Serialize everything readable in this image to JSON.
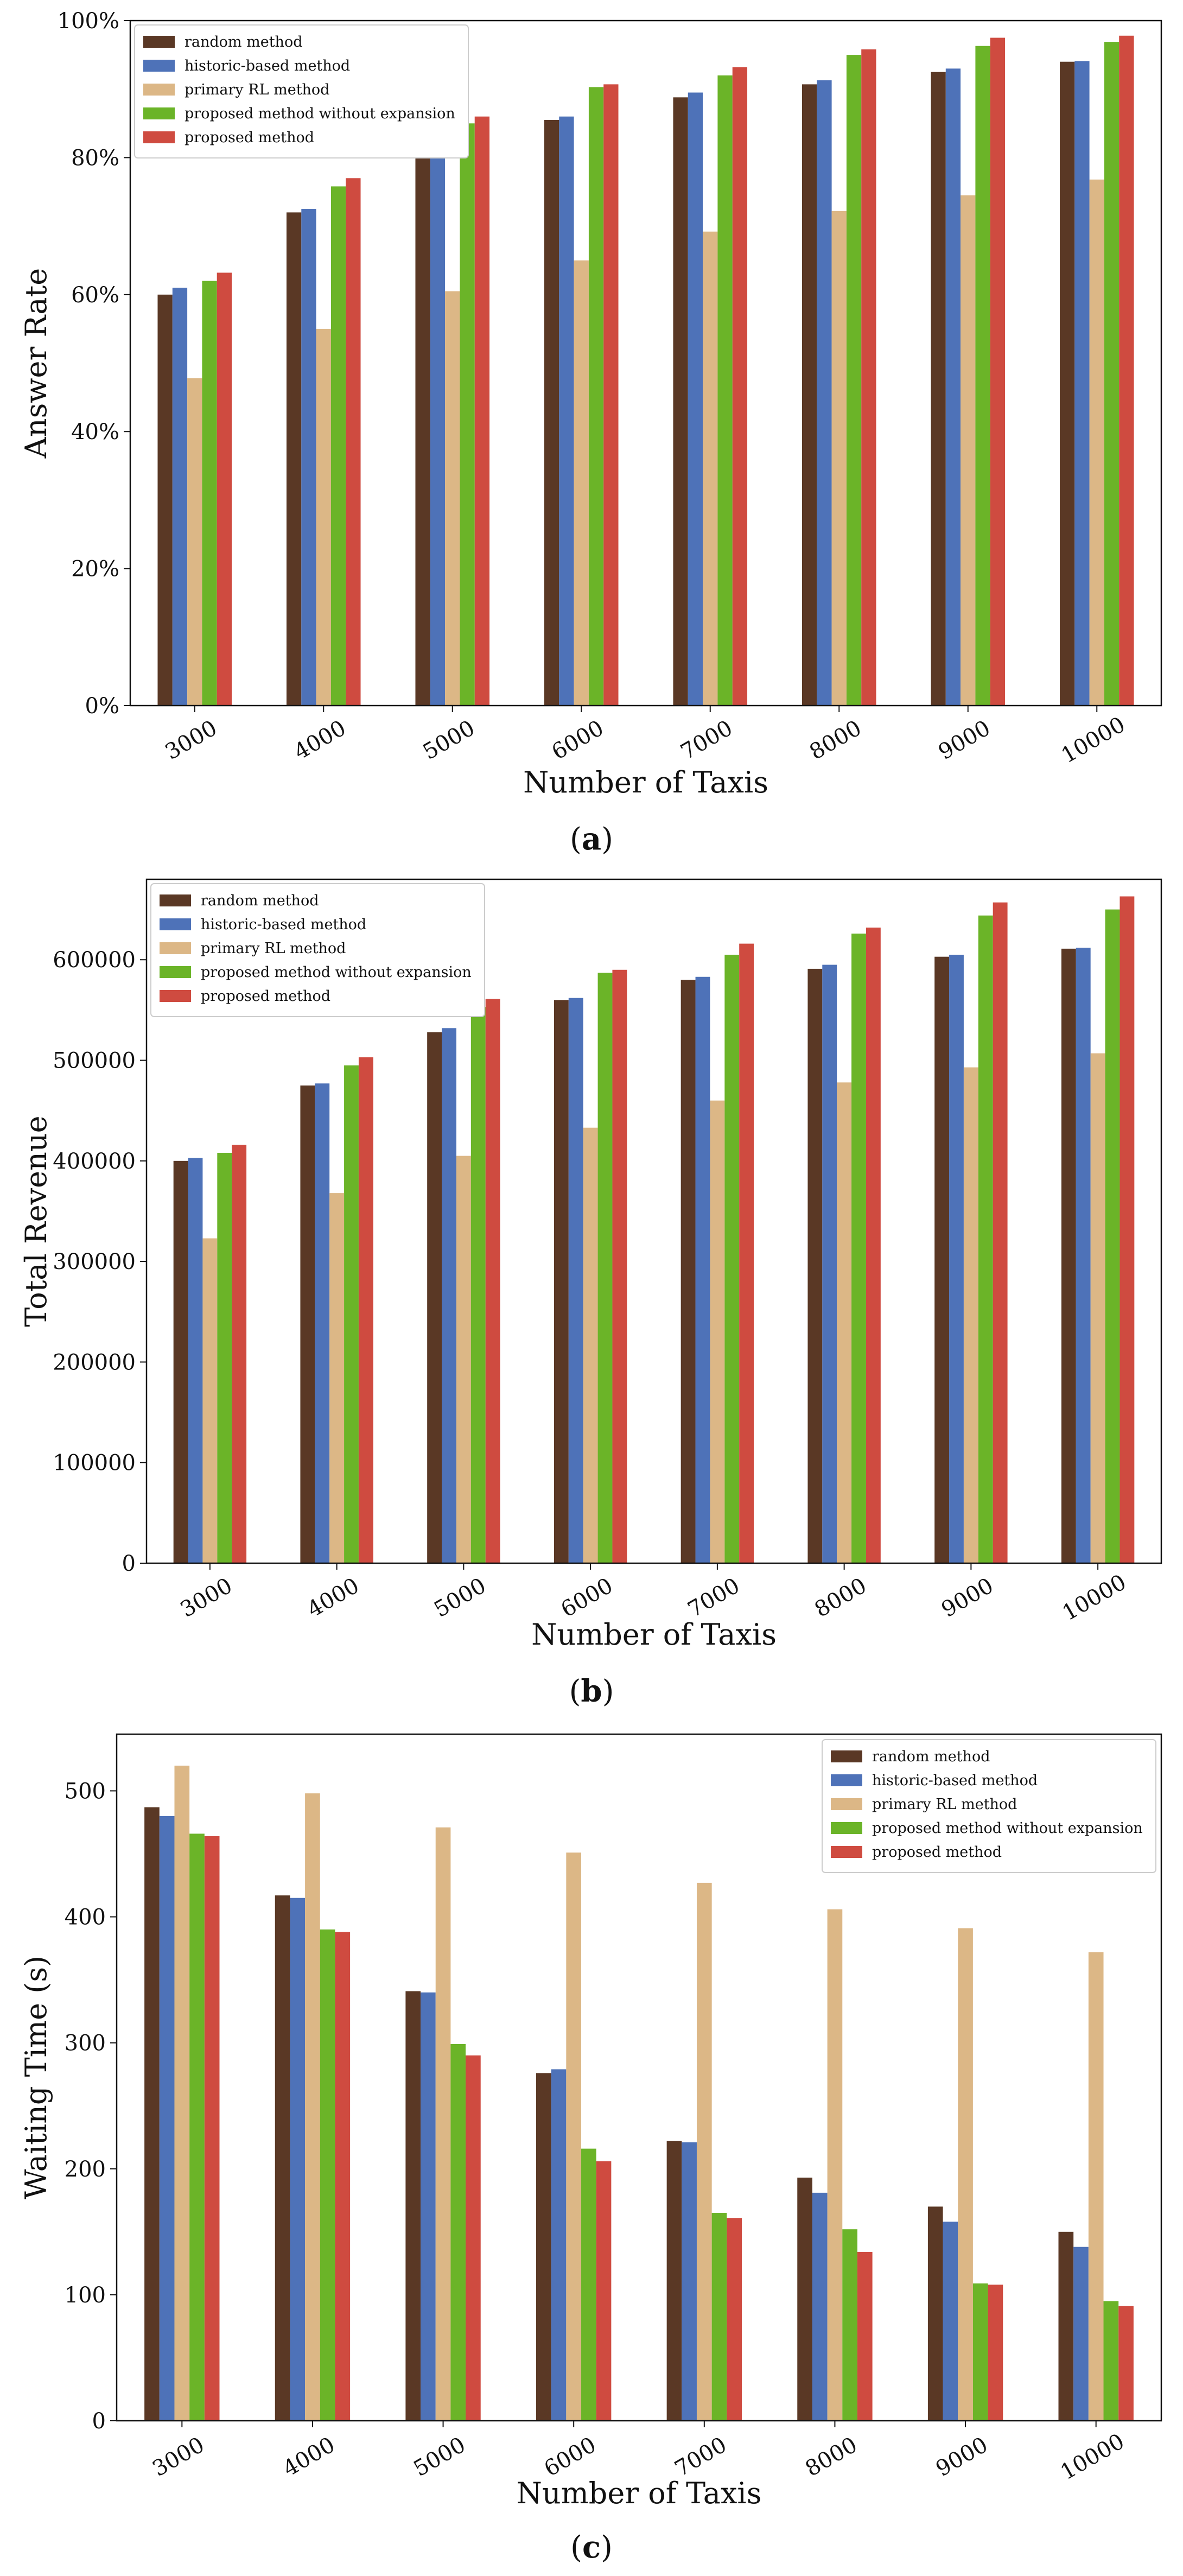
{
  "colors": {
    "random": "#5a3825",
    "historic": "#4e72b8",
    "primary_rl": "#dcb786",
    "proposed_no_exp": "#6bb428",
    "proposed": "#cf4b40"
  },
  "chart_data": [
    {
      "type": "bar",
      "id": "a",
      "caption_open": "(",
      "caption_letter": "a",
      "caption_close": ")",
      "xlabel": "Number of Taxis",
      "ylabel": "Answer Rate",
      "categories": [
        "3000",
        "4000",
        "5000",
        "6000",
        "7000",
        "8000",
        "9000",
        "10000"
      ],
      "ylim": [
        0,
        100
      ],
      "yticks": [
        0,
        20,
        40,
        60,
        80,
        100
      ],
      "ytick_labels": [
        "0%",
        "20%",
        "40%",
        "60%",
        "80%",
        "100%"
      ],
      "legend_position": "top-left",
      "series": [
        {
          "name": "random method",
          "color_key": "random",
          "values": [
            60,
            72,
            80.5,
            85.5,
            88.8,
            90.7,
            92.5,
            94
          ]
        },
        {
          "name": "historic-based method",
          "color_key": "historic",
          "values": [
            61,
            72.5,
            81.2,
            86,
            89.5,
            91.3,
            93,
            94.1
          ]
        },
        {
          "name": "primary RL method",
          "color_key": "primary_rl",
          "values": [
            47.8,
            55,
            60.5,
            65,
            69.2,
            72.2,
            74.5,
            76.8
          ]
        },
        {
          "name": "proposed method without expansion",
          "color_key": "proposed_no_exp",
          "values": [
            62,
            75.8,
            85,
            90.3,
            92,
            95,
            96.3,
            96.9
          ]
        },
        {
          "name": "proposed method",
          "color_key": "proposed",
          "values": [
            63.2,
            77,
            86,
            90.7,
            93.2,
            95.8,
            97.5,
            97.8
          ]
        }
      ]
    },
    {
      "type": "bar",
      "id": "b",
      "caption_open": "(",
      "caption_letter": "b",
      "caption_close": ")",
      "xlabel": "Number of Taxis",
      "ylabel": "Total Revenue",
      "categories": [
        "3000",
        "4000",
        "5000",
        "6000",
        "7000",
        "8000",
        "9000",
        "10000"
      ],
      "ylim": [
        0,
        680000
      ],
      "yticks": [
        0,
        100000,
        200000,
        300000,
        400000,
        500000,
        600000
      ],
      "ytick_labels": [
        "0",
        "100000",
        "200000",
        "300000",
        "400000",
        "500000",
        "600000"
      ],
      "legend_position": "top-left",
      "series": [
        {
          "name": "random method",
          "color_key": "random",
          "values": [
            400000,
            475000,
            528000,
            560000,
            580000,
            591000,
            603000,
            611000
          ]
        },
        {
          "name": "historic-based method",
          "color_key": "historic",
          "values": [
            403000,
            477000,
            532000,
            562000,
            583000,
            595000,
            605000,
            612000
          ]
        },
        {
          "name": "primary RL method",
          "color_key": "primary_rl",
          "values": [
            323000,
            368000,
            405000,
            433000,
            460000,
            478000,
            493000,
            507000
          ]
        },
        {
          "name": "proposed method without expansion",
          "color_key": "proposed_no_exp",
          "values": [
            408000,
            495000,
            553000,
            587000,
            605000,
            626000,
            644000,
            650000
          ]
        },
        {
          "name": "proposed method",
          "color_key": "proposed",
          "values": [
            416000,
            503000,
            561000,
            590000,
            616000,
            632000,
            657000,
            663000
          ]
        }
      ]
    },
    {
      "type": "bar",
      "id": "c",
      "caption_open": "(",
      "caption_letter": "c",
      "caption_close": ")",
      "xlabel": "Number of Taxis",
      "ylabel": "Waiting Time (s)",
      "categories": [
        "3000",
        "4000",
        "5000",
        "6000",
        "7000",
        "8000",
        "9000",
        "10000"
      ],
      "ylim": [
        0,
        545
      ],
      "yticks": [
        0,
        100,
        200,
        300,
        400,
        500
      ],
      "ytick_labels": [
        "0",
        "100",
        "200",
        "300",
        "400",
        "500"
      ],
      "legend_position": "top-right",
      "series": [
        {
          "name": "random method",
          "color_key": "random",
          "values": [
            487,
            417,
            341,
            276,
            222,
            193,
            170,
            150
          ]
        },
        {
          "name": "historic-based method",
          "color_key": "historic",
          "values": [
            480,
            415,
            340,
            279,
            221,
            181,
            158,
            138
          ]
        },
        {
          "name": "primary RL method",
          "color_key": "primary_rl",
          "values": [
            520,
            498,
            471,
            451,
            427,
            406,
            391,
            372
          ]
        },
        {
          "name": "proposed method without expansion",
          "color_key": "proposed_no_exp",
          "values": [
            466,
            390,
            299,
            216,
            165,
            152,
            109,
            95
          ]
        },
        {
          "name": "proposed method",
          "color_key": "proposed",
          "values": [
            464,
            388,
            290,
            206,
            161,
            134,
            108,
            91
          ]
        }
      ]
    }
  ]
}
